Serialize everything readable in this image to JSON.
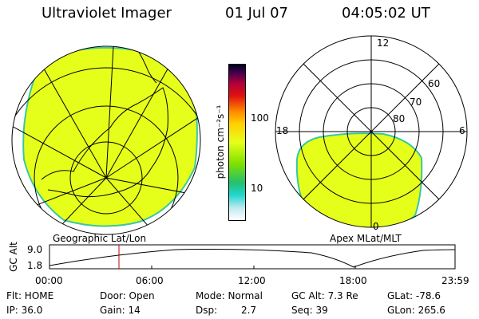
{
  "header": {
    "instrument": "Ultraviolet Imager",
    "date": "01 Jul 07",
    "time": "04:05:02 UT"
  },
  "colorbar": {
    "label": "photon cm⁻²s⁻¹",
    "ticks": [
      "100",
      "10"
    ]
  },
  "left_panel": {
    "caption": "Geographic Lat/Lon"
  },
  "right_panel": {
    "caption": "Apex MLat/MLT",
    "clock_labels": {
      "top": "12",
      "left": "18",
      "right": "6",
      "bottom": "0"
    },
    "lat_labels": [
      "60",
      "70",
      "80"
    ]
  },
  "altitude_plot": {
    "ylabel": "GC Alt",
    "yticks": [
      "9.0",
      "1.8"
    ],
    "xticks": [
      "00:00",
      "06:00",
      "12:00",
      "18:00",
      "23:59"
    ]
  },
  "status": {
    "filter": "Flt: HOME",
    "door": "Door: Open",
    "mode": "Mode: Normal",
    "gc_alt": "GC Alt: 7.3 Re",
    "glat": "GLat: -78.6",
    "ip": "IP: 36.0",
    "gain": "Gain: 14",
    "dsp_label": "Dsp:",
    "dsp_value": "2.7",
    "seq": "Seq: 39",
    "glon": "GLon: 265.6"
  },
  "colors": {
    "image_fill": "#e6ff1a",
    "image_edge": "#38c8a0",
    "marker": "#c00000"
  }
}
